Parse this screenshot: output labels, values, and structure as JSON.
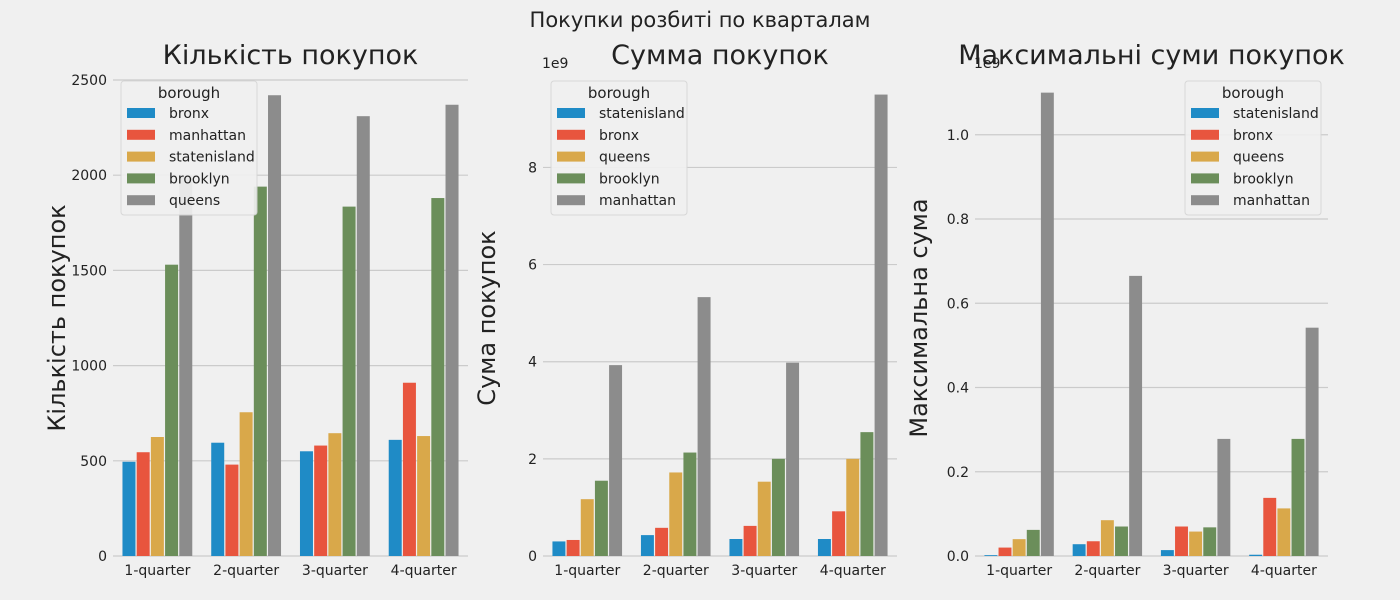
{
  "figure": {
    "suptitle": "Покупки розбиті по кварталам"
  },
  "colors": {
    "background": "#f0f0f0",
    "grid": "#cbcbcb",
    "text": "#222222",
    "blue": "#1f8bc6",
    "red": "#e8553e",
    "yellow": "#d9a84a",
    "green": "#6b8e5a",
    "gray": "#8c8c8c"
  },
  "chart_data": [
    {
      "type": "bar",
      "title": "Кількість покупок",
      "xlabel": "",
      "ylabel": "Кількість покупок",
      "offset_text": "",
      "categories": [
        "1-quarter",
        "2-quarter",
        "3-quarter",
        "4-quarter"
      ],
      "ylim": [
        0,
        2500
      ],
      "yticks": [
        0,
        500,
        1000,
        1500,
        2000,
        2500
      ],
      "ytick_labels": [
        "0",
        "500",
        "1000",
        "1500",
        "2000",
        "2500"
      ],
      "grid": true,
      "legend": {
        "title": "borough",
        "position": "top-left"
      },
      "series": [
        {
          "name": "bronx",
          "color": "#1f8bc6",
          "values": [
            495,
            595,
            550,
            610
          ]
        },
        {
          "name": "manhattan",
          "color": "#e8553e",
          "values": [
            545,
            480,
            580,
            910
          ]
        },
        {
          "name": "statenisland",
          "color": "#d9a84a",
          "values": [
            625,
            755,
            645,
            630
          ]
        },
        {
          "name": "brooklyn",
          "color": "#6b8e5a",
          "values": [
            1530,
            1940,
            1835,
            1880
          ]
        },
        {
          "name": "queens",
          "color": "#8c8c8c",
          "values": [
            2000,
            2420,
            2310,
            2370
          ]
        }
      ]
    },
    {
      "type": "bar",
      "title": "Сумма покупок",
      "xlabel": "",
      "ylabel": "Сума покупок",
      "offset_text": "1e9",
      "categories": [
        "1-quarter",
        "2-quarter",
        "3-quarter",
        "4-quarter"
      ],
      "ylim": [
        0,
        9.8
      ],
      "yticks": [
        0,
        2,
        4,
        6,
        8
      ],
      "ytick_labels": [
        "0",
        "2",
        "4",
        "6",
        "8"
      ],
      "grid": true,
      "legend": {
        "title": "borough",
        "position": "top-left"
      },
      "series": [
        {
          "name": "statenisland",
          "color": "#1f8bc6",
          "values": [
            0.3,
            0.43,
            0.35,
            0.35
          ]
        },
        {
          "name": "bronx",
          "color": "#e8553e",
          "values": [
            0.33,
            0.58,
            0.62,
            0.92
          ]
        },
        {
          "name": "queens",
          "color": "#d9a84a",
          "values": [
            1.17,
            1.72,
            1.53,
            2.0
          ]
        },
        {
          "name": "brooklyn",
          "color": "#6b8e5a",
          "values": [
            1.55,
            2.13,
            2.0,
            2.55
          ]
        },
        {
          "name": "manhattan",
          "color": "#8c8c8c",
          "values": [
            3.93,
            5.33,
            3.98,
            9.5
          ]
        }
      ]
    },
    {
      "type": "bar",
      "title": "Максимальні суми покупок",
      "xlabel": "",
      "ylabel": "Максимальна сума",
      "offset_text": "1e9",
      "categories": [
        "1-quarter",
        "2-quarter",
        "3-quarter",
        "4-quarter"
      ],
      "ylim": [
        0,
        1.13
      ],
      "yticks": [
        0,
        0.2,
        0.4,
        0.6,
        0.8,
        1.0
      ],
      "ytick_labels": [
        "0.0",
        "0.2",
        "0.4",
        "0.6",
        "0.8",
        "1.0"
      ],
      "grid": true,
      "legend": {
        "title": "borough",
        "position": "top-right"
      },
      "series": [
        {
          "name": "statenisland",
          "color": "#1f8bc6",
          "values": [
            0.002,
            0.028,
            0.014,
            0.003
          ]
        },
        {
          "name": "bronx",
          "color": "#e8553e",
          "values": [
            0.02,
            0.035,
            0.07,
            0.138
          ]
        },
        {
          "name": "queens",
          "color": "#d9a84a",
          "values": [
            0.04,
            0.085,
            0.058,
            0.113
          ]
        },
        {
          "name": "brooklyn",
          "color": "#6b8e5a",
          "values": [
            0.062,
            0.07,
            0.068,
            0.278
          ]
        },
        {
          "name": "manhattan",
          "color": "#8c8c8c",
          "values": [
            1.1,
            0.665,
            0.278,
            0.542
          ]
        }
      ]
    }
  ]
}
